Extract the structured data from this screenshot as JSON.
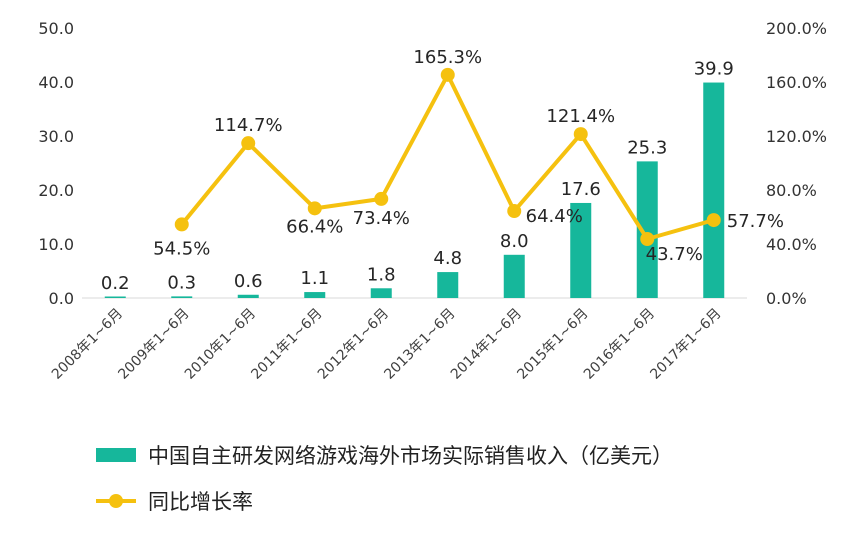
{
  "chart_data": {
    "type": "bar",
    "categories": [
      "2008年1~6月",
      "2009年1~6月",
      "2010年1~6月",
      "2011年1~6月",
      "2012年1~6月",
      "2013年1~6月",
      "2014年1~6月",
      "2015年1~6月",
      "2016年1~6月",
      "2017年1~6月"
    ],
    "series": [
      {
        "name": "中国自主研发网络游戏海外市场实际销售收入（亿美元）",
        "type": "bar",
        "axis": "left",
        "values": [
          0.2,
          0.3,
          0.6,
          1.1,
          1.8,
          4.8,
          8.0,
          17.6,
          25.3,
          39.9
        ],
        "labels": [
          "0.2",
          "0.3",
          "0.6",
          "1.1",
          "1.8",
          "4.8",
          "8.0",
          "17.6",
          "25.3",
          "39.9"
        ],
        "color": "#16b79b"
      },
      {
        "name": "同比增长率",
        "type": "line",
        "axis": "right",
        "values": [
          null,
          54.5,
          114.7,
          66.4,
          73.4,
          165.3,
          64.4,
          121.4,
          43.7,
          57.7
        ],
        "labels": [
          "",
          "54.5%",
          "114.7%",
          "66.4%",
          "73.4%",
          "165.3%",
          "64.4%",
          "121.4%",
          "43.7%",
          "57.7%"
        ],
        "color": "#f5c10f"
      }
    ],
    "y_left": {
      "ylim": [
        0,
        50
      ],
      "ticks": [
        "0.0",
        "10.0",
        "20.0",
        "30.0",
        "40.0",
        "50.0"
      ]
    },
    "y_right": {
      "ylim": [
        0,
        200
      ],
      "ticks": [
        "0.0%",
        "40.0%",
        "80.0%",
        "120.0%",
        "160.0%",
        "200.0%"
      ]
    },
    "grid": false,
    "legend_position": "bottom"
  }
}
